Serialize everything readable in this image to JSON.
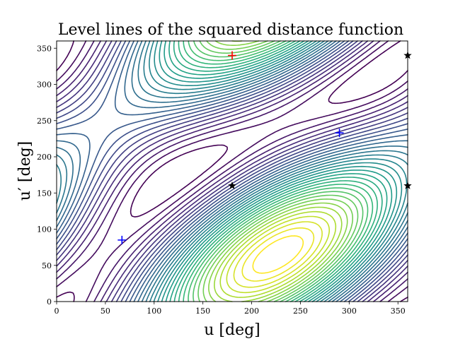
{
  "chart_data": {
    "type": "contour",
    "title": "Level lines of the squared distance function",
    "xlabel": "u [deg]",
    "ylabel": "u′ [deg]",
    "xlim": [
      0,
      360
    ],
    "ylim": [
      0,
      360
    ],
    "xticks": [
      0,
      50,
      100,
      150,
      200,
      250,
      300,
      350
    ],
    "yticks": [
      0,
      50,
      100,
      150,
      200,
      250,
      300,
      350
    ],
    "grid": false,
    "colormap": "viridis",
    "level_count": 34,
    "markers": {
      "minima": {
        "color": "#0000ff",
        "marker": "+",
        "points": [
          [
            67,
            85
          ],
          [
            290,
            233
          ]
        ]
      },
      "maximum": {
        "color": "#ff0000",
        "marker": "+",
        "points": [
          [
            180,
            340
          ]
        ]
      },
      "saddles": {
        "color": "#000000",
        "marker": "star",
        "points": [
          [
            180,
            160
          ],
          [
            360,
            160
          ],
          [
            360,
            340
          ]
        ]
      }
    }
  }
}
